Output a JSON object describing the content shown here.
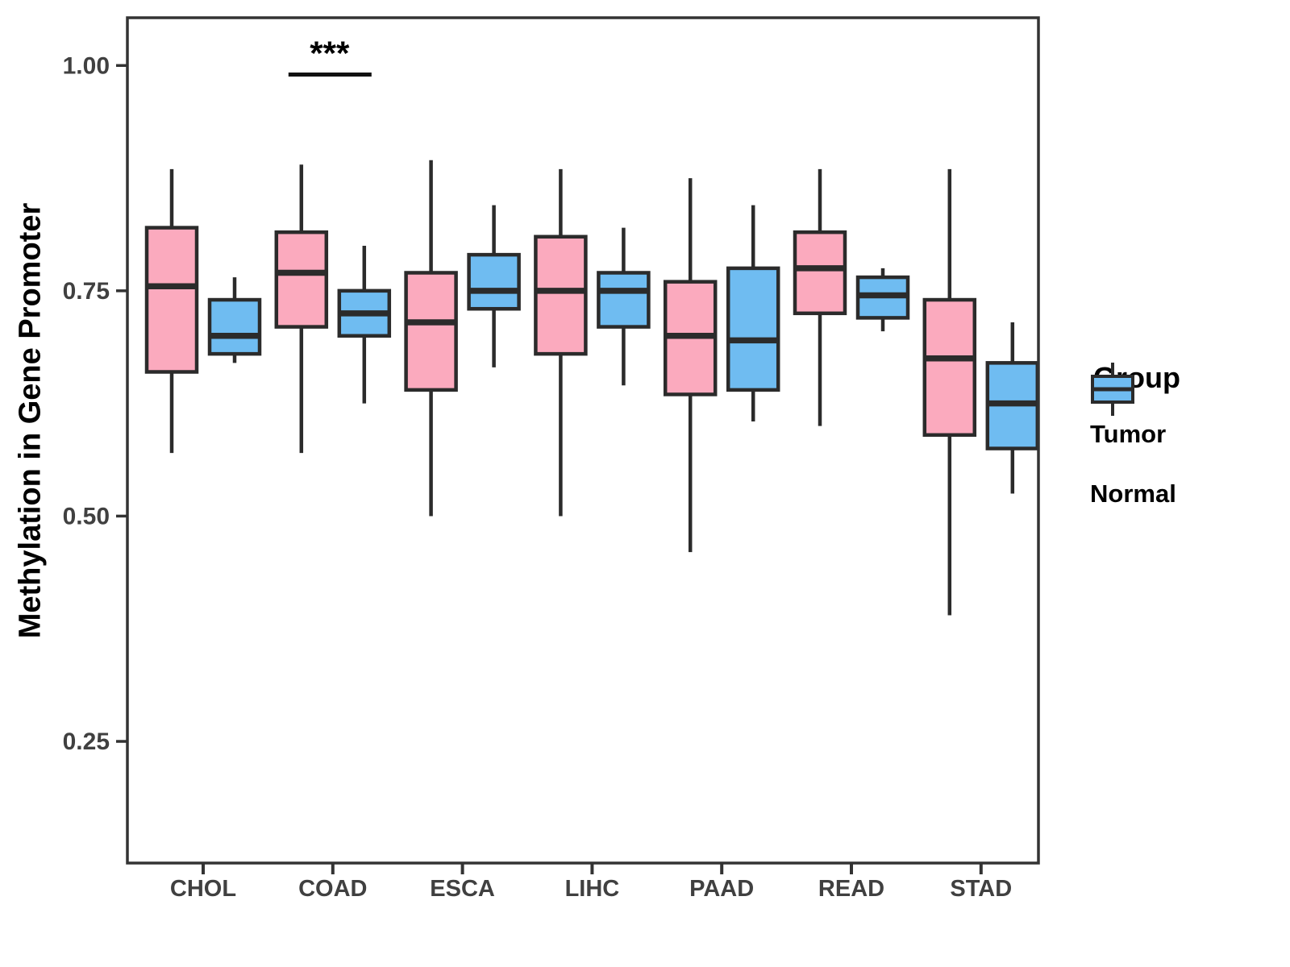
{
  "chart_data": {
    "type": "boxplot",
    "title": "",
    "xlabel": "",
    "ylabel": "Methylation in Gene Promoter",
    "legend_title": "Group",
    "legend_position": "right",
    "grid": false,
    "categories": [
      "CHOL",
      "COAD",
      "ESCA",
      "LIHC",
      "PAAD",
      "READ",
      "STAD"
    ],
    "y_ticks": {
      "values": [
        1.0,
        0.75,
        0.5,
        0.25
      ],
      "labels": [
        "1.00",
        "0.75",
        "0.50",
        "0.25"
      ]
    },
    "ylim": [
      0.115,
      1.053
    ],
    "box_stroke_color": "#2B2B2B",
    "axis_color": "#333333",
    "tick_text_color": "#404040",
    "series": [
      {
        "name": "Tumor",
        "fill": "#FBAABE",
        "boxes": [
          {
            "min": 0.57,
            "q1": 0.66,
            "median": 0.755,
            "q3": 0.82,
            "max": 0.885
          },
          {
            "min": 0.57,
            "q1": 0.71,
            "median": 0.77,
            "q3": 0.815,
            "max": 0.89
          },
          {
            "min": 0.5,
            "q1": 0.64,
            "median": 0.715,
            "q3": 0.77,
            "max": 0.895
          },
          {
            "min": 0.5,
            "q1": 0.68,
            "median": 0.75,
            "q3": 0.81,
            "max": 0.885
          },
          {
            "min": 0.46,
            "q1": 0.635,
            "median": 0.7,
            "q3": 0.76,
            "max": 0.875
          },
          {
            "min": 0.6,
            "q1": 0.725,
            "median": 0.775,
            "q3": 0.815,
            "max": 0.885
          },
          {
            "min": 0.39,
            "q1": 0.59,
            "median": 0.675,
            "q3": 0.74,
            "max": 0.885
          }
        ]
      },
      {
        "name": "Normal",
        "fill": "#6FBCF1",
        "boxes": [
          {
            "min": 0.67,
            "q1": 0.68,
            "median": 0.7,
            "q3": 0.74,
            "max": 0.765
          },
          {
            "min": 0.625,
            "q1": 0.7,
            "median": 0.725,
            "q3": 0.75,
            "max": 0.8
          },
          {
            "min": 0.665,
            "q1": 0.73,
            "median": 0.75,
            "q3": 0.79,
            "max": 0.845
          },
          {
            "min": 0.645,
            "q1": 0.71,
            "median": 0.75,
            "q3": 0.77,
            "max": 0.82
          },
          {
            "min": 0.605,
            "q1": 0.64,
            "median": 0.695,
            "q3": 0.775,
            "max": 0.845
          },
          {
            "min": 0.705,
            "q1": 0.72,
            "median": 0.745,
            "q3": 0.765,
            "max": 0.775
          },
          {
            "min": 0.525,
            "q1": 0.575,
            "median": 0.625,
            "q3": 0.67,
            "max": 0.715
          }
        ]
      }
    ],
    "annotations": [
      {
        "type": "significance-bar",
        "text": "***",
        "category": "COAD",
        "y_value": 0.99
      }
    ]
  }
}
